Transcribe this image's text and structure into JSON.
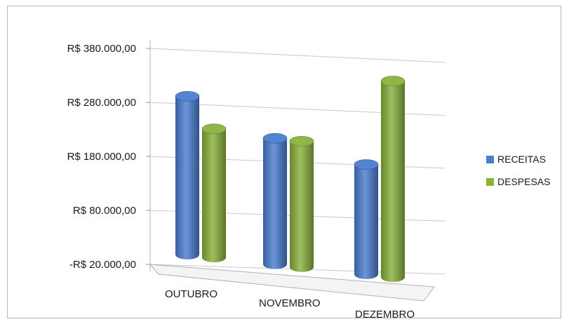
{
  "chart_data": {
    "type": "bar",
    "subtype": "3d-cylinder",
    "title": "",
    "xlabel": "",
    "ylabel": "",
    "categories": [
      "OUTUBRO",
      "NOVEMBRO",
      "DEZEMBRO"
    ],
    "series": [
      {
        "name": "RECEITAS",
        "color": "#4a7ed1",
        "values": [
          290000,
          230000,
          200000
        ]
      },
      {
        "name": "DESPESAS",
        "color": "#8ab23c",
        "values": [
          235000,
          230000,
          360000
        ]
      }
    ],
    "ylim": [
      -20000,
      380000
    ],
    "yticks": [
      -20000,
      80000,
      180000,
      280000,
      380000
    ],
    "ytick_labels": [
      "-R$ 20.000,00",
      "R$ 80.000,00",
      "R$ 180.000,00",
      "R$ 280.000,00",
      "R$ 380.000,00"
    ],
    "grid": true,
    "legend_position": "right"
  }
}
